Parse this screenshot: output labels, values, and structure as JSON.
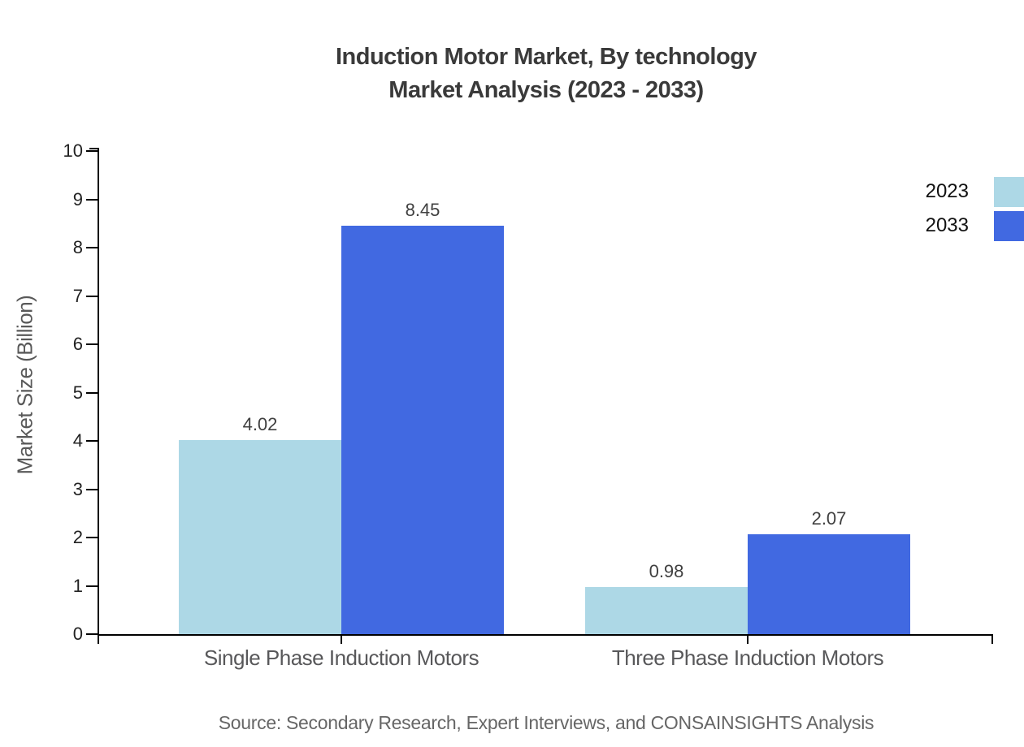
{
  "title": {
    "line1": "Induction Motor Market, By technology",
    "line2": "Market Analysis (2023 - 2033)"
  },
  "source": "Source: Secondary Research, Expert Interviews, and CONSAINSIGHTS Analysis",
  "chart_data": {
    "type": "bar",
    "title": "Induction Motor Market, By technology Market Analysis (2023 - 2033)",
    "categories": [
      "Single Phase Induction Motors",
      "Three Phase Induction Motors"
    ],
    "series": [
      {
        "name": "2023",
        "color": "#ADD8E6",
        "values": [
          4.02,
          0.98
        ]
      },
      {
        "name": "2033",
        "color": "#4169E1",
        "values": [
          8.45,
          2.07
        ]
      }
    ],
    "value_labels": [
      [
        "4.02",
        "0.98"
      ],
      [
        "8.45",
        "2.07"
      ]
    ],
    "xlabel": "",
    "ylabel": "Market Size (Billion)",
    "ylim": [
      0,
      10
    ],
    "ytick_step": 1,
    "yticks": [
      0,
      1,
      2,
      3,
      4,
      5,
      6,
      7,
      8,
      9,
      10
    ],
    "grid": false,
    "legend_position": "top-right",
    "axis_color": "#000000",
    "background": "#ffffff"
  }
}
